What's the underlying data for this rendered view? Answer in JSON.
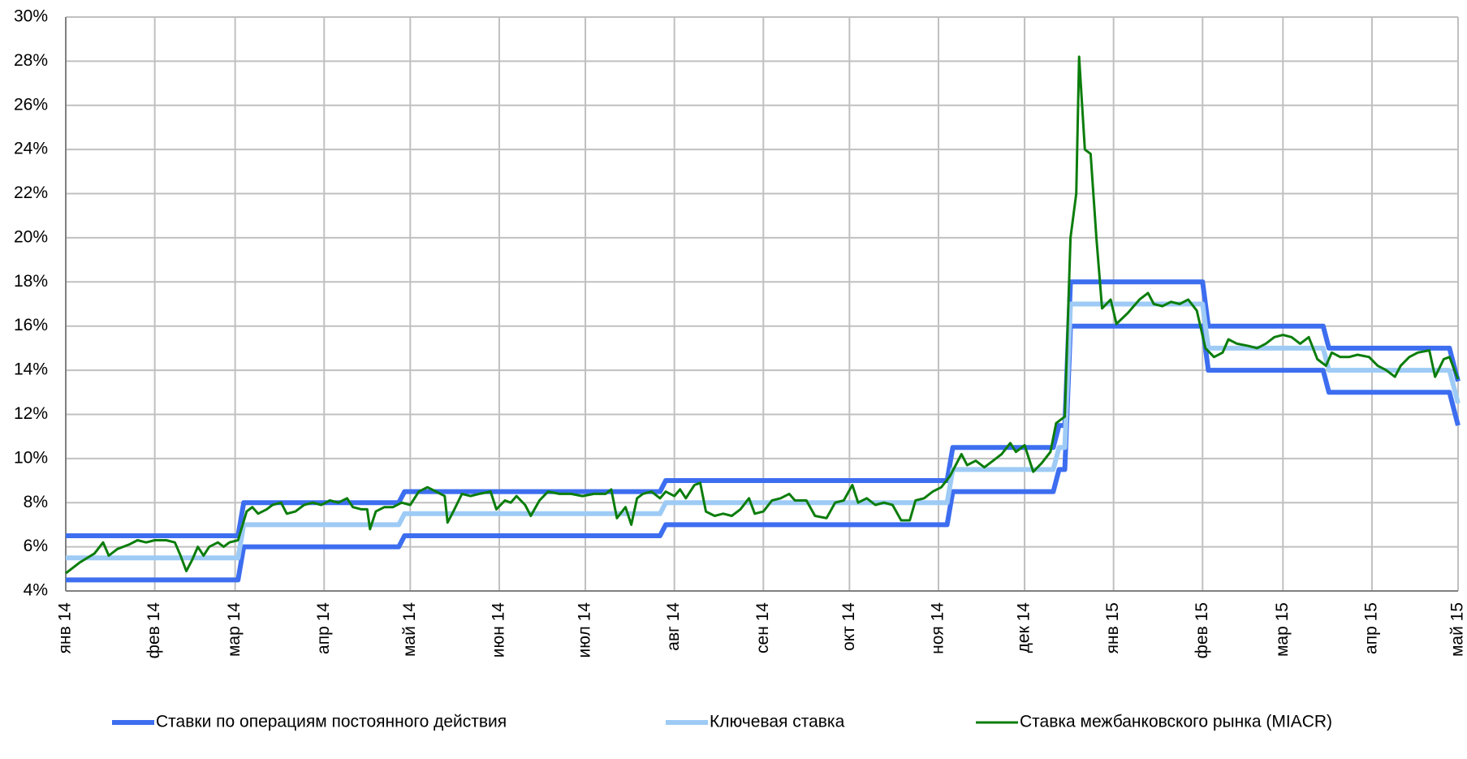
{
  "chart_data": {
    "type": "line",
    "xlim": [
      0,
      485
    ],
    "xticks": [
      {
        "value": 0,
        "label": "янв 14"
      },
      {
        "value": 31,
        "label": "фев 14"
      },
      {
        "value": 59,
        "label": "мар 14"
      },
      {
        "value": 90,
        "label": "апр 14"
      },
      {
        "value": 120,
        "label": "май 14"
      },
      {
        "value": 151,
        "label": "июн 14"
      },
      {
        "value": 181,
        "label": "июл 14"
      },
      {
        "value": 212,
        "label": "авг 14"
      },
      {
        "value": 243,
        "label": "сен 14"
      },
      {
        "value": 273,
        "label": "окт 14"
      },
      {
        "value": 304,
        "label": "ноя 14"
      },
      {
        "value": 334,
        "label": "дек 14"
      },
      {
        "value": 365,
        "label": "янв 15"
      },
      {
        "value": 396,
        "label": "фев 15"
      },
      {
        "value": 424,
        "label": "мар 15"
      },
      {
        "value": 455,
        "label": "апр 15"
      },
      {
        "value": 485,
        "label": "май 15"
      }
    ],
    "ylim": [
      4,
      30
    ],
    "yticks": [
      {
        "value": 4,
        "label": "4%"
      },
      {
        "value": 6,
        "label": "6%"
      },
      {
        "value": 8,
        "label": "8%"
      },
      {
        "value": 10,
        "label": "10%"
      },
      {
        "value": 12,
        "label": "12%"
      },
      {
        "value": 14,
        "label": "14%"
      },
      {
        "value": 16,
        "label": "16%"
      },
      {
        "value": 18,
        "label": "18%"
      },
      {
        "value": 20,
        "label": "20%"
      },
      {
        "value": 22,
        "label": "22%"
      },
      {
        "value": 24,
        "label": "24%"
      },
      {
        "value": 26,
        "label": "26%"
      },
      {
        "value": 28,
        "label": "28%"
      },
      {
        "value": 30,
        "label": "30%"
      }
    ],
    "grid": true,
    "legend": "bottom",
    "series": [
      {
        "name": "Ставки по операциям постоянного действия",
        "color": "#3d6ef0",
        "x": [
          0,
          60,
          62,
          116,
          118,
          207,
          209,
          307,
          309,
          344,
          346,
          348,
          350,
          396,
          398,
          438,
          440,
          482,
          485
        ],
        "values": [
          6.5,
          6.5,
          8,
          8,
          8.5,
          8.5,
          9,
          9,
          10.5,
          10.5,
          11.5,
          11.5,
          18,
          18,
          16,
          16,
          15,
          15,
          13.5
        ],
        "values_lower": [
          4.5,
          4.5,
          6,
          6,
          6.5,
          6.5,
          7,
          7,
          8.5,
          8.5,
          9.5,
          9.5,
          16,
          16,
          14,
          14,
          13,
          13,
          11.5
        ]
      },
      {
        "name": "Ключевая ставка",
        "color": "#9ecbf5",
        "x": [
          0,
          60,
          62,
          116,
          118,
          207,
          209,
          307,
          309,
          344,
          346,
          348,
          350,
          396,
          398,
          438,
          440,
          482,
          485
        ],
        "values": [
          5.5,
          5.5,
          7,
          7,
          7.5,
          7.5,
          8,
          8,
          9.5,
          9.5,
          10.5,
          10.5,
          17,
          17,
          15,
          15,
          14,
          14,
          12.5
        ]
      },
      {
        "name": "Ставка межбанковского рынка (MIACR)",
        "color": "#0b7d0b",
        "x": [
          0,
          5,
          10,
          13,
          15,
          18,
          22,
          25,
          28,
          31,
          35,
          38,
          40,
          42,
          44,
          46,
          48,
          50,
          53,
          55,
          57,
          60,
          63,
          65,
          67,
          70,
          72,
          75,
          77,
          80,
          83,
          86,
          89,
          92,
          95,
          98,
          100,
          103,
          105,
          106,
          108,
          111,
          114,
          117,
          120,
          123,
          126,
          129,
          132,
          133,
          135,
          138,
          141,
          144,
          148,
          150,
          153,
          155,
          157,
          160,
          162,
          165,
          168,
          172,
          176,
          180,
          184,
          188,
          190,
          192,
          195,
          197,
          199,
          201,
          204,
          207,
          209,
          212,
          214,
          216,
          219,
          221,
          223,
          226,
          229,
          232,
          235,
          238,
          240,
          243,
          246,
          249,
          252,
          254,
          258,
          261,
          265,
          268,
          271,
          274,
          276,
          279,
          282,
          285,
          288,
          291,
          294,
          296,
          299,
          302,
          305,
          308,
          310,
          312,
          314,
          317,
          320,
          323,
          326,
          329,
          331,
          334,
          337,
          340,
          343,
          345,
          348,
          350,
          352,
          353,
          355,
          357,
          359,
          361,
          364,
          366,
          370,
          374,
          377,
          379,
          382,
          385,
          388,
          391,
          394,
          397,
          400,
          403,
          405,
          408,
          412,
          415,
          418,
          421,
          424,
          427,
          430,
          433,
          436,
          439,
          441,
          444,
          447,
          450,
          454,
          457,
          460,
          463,
          465,
          468,
          471,
          475,
          477,
          480,
          482,
          485
        ],
        "values": [
          4.8,
          5.3,
          5.7,
          6.2,
          5.6,
          5.9,
          6.1,
          6.3,
          6.2,
          6.3,
          6.3,
          6.2,
          5.6,
          4.9,
          5.4,
          6.0,
          5.6,
          6.0,
          6.2,
          6.0,
          6.2,
          6.3,
          7.6,
          7.8,
          7.5,
          7.7,
          7.9,
          8.0,
          7.5,
          7.6,
          7.9,
          8.0,
          7.9,
          8.1,
          8.0,
          8.2,
          7.8,
          7.7,
          7.7,
          6.8,
          7.6,
          7.8,
          7.8,
          8.0,
          7.9,
          8.5,
          8.7,
          8.5,
          8.3,
          7.1,
          7.6,
          8.4,
          8.3,
          8.4,
          8.5,
          7.7,
          8.1,
          8.0,
          8.3,
          7.9,
          7.4,
          8.1,
          8.5,
          8.4,
          8.4,
          8.3,
          8.4,
          8.4,
          8.6,
          7.3,
          7.8,
          7.0,
          8.2,
          8.4,
          8.5,
          8.2,
          8.5,
          8.3,
          8.6,
          8.2,
          8.8,
          8.9,
          7.6,
          7.4,
          7.5,
          7.4,
          7.7,
          8.2,
          7.5,
          7.6,
          8.1,
          8.2,
          8.4,
          8.1,
          8.1,
          7.4,
          7.3,
          8.0,
          8.1,
          8.8,
          8.0,
          8.2,
          7.9,
          8.0,
          7.9,
          7.2,
          7.2,
          8.1,
          8.2,
          8.5,
          8.7,
          9.2,
          9.7,
          10.2,
          9.7,
          9.9,
          9.6,
          9.9,
          10.2,
          10.7,
          10.3,
          10.6,
          9.4,
          9.8,
          10.3,
          11.6,
          11.9,
          20,
          22,
          28.2,
          24,
          23.8,
          20,
          16.8,
          17.2,
          16.1,
          16.6,
          17.2,
          17.5,
          17.0,
          16.9,
          17.1,
          17.0,
          17.2,
          16.7,
          15.0,
          14.6,
          14.8,
          15.4,
          15.2,
          15.1,
          15.0,
          15.2,
          15.5,
          15.6,
          15.5,
          15.2,
          15.5,
          14.5,
          14.2,
          14.8,
          14.6,
          14.6,
          14.7,
          14.6,
          14.2,
          14.0,
          13.7,
          14.2,
          14.6,
          14.8,
          14.9,
          13.7,
          14.5,
          14.6,
          13.6
        ]
      }
    ]
  }
}
